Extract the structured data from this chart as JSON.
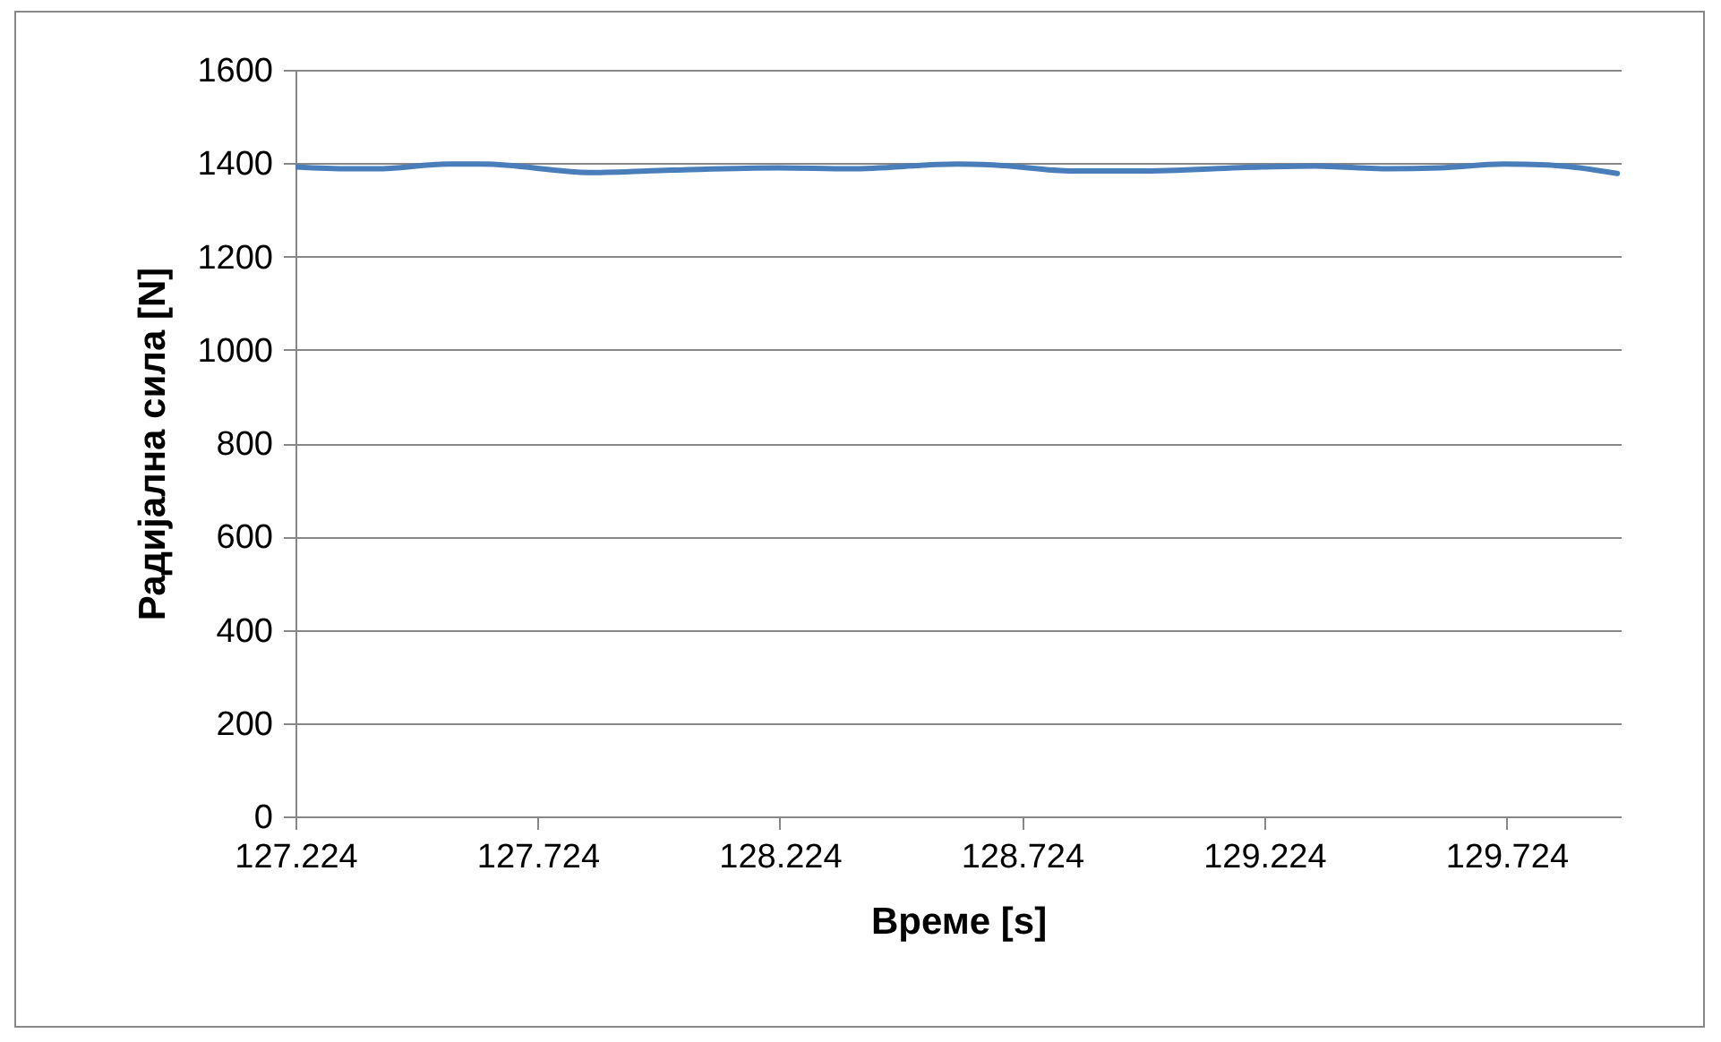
{
  "chart_data": {
    "type": "line",
    "xlabel": "Време [s]",
    "ylabel": "Радијална сила [N]",
    "x": [
      127.224,
      127.335,
      127.39,
      127.538,
      127.612,
      127.833,
      128.0,
      128.221,
      128.369,
      128.59,
      128.664,
      128.83,
      128.959,
      129.218,
      129.329,
      129.477,
      129.587,
      129.717,
      129.809,
      129.953
    ],
    "series": [
      {
        "color": "#4a7ebb",
        "values": [
          1392,
          1388,
          1388,
          1398,
          1398,
          1380,
          1385,
          1390,
          1388,
          1398,
          1396,
          1383,
          1383,
          1392,
          1394,
          1388,
          1390,
          1398,
          1396,
          1378
        ]
      }
    ],
    "xlim": [
      127.224,
      129.96
    ],
    "xticks": [
      127.224,
      127.724,
      128.224,
      128.724,
      129.224,
      129.724
    ],
    "ylim": [
      0,
      1600
    ],
    "yticks": [
      0,
      200,
      400,
      600,
      800,
      1000,
      1200,
      1400,
      1600
    ],
    "grid": "y",
    "marker": "none",
    "line_style": "solid"
  }
}
